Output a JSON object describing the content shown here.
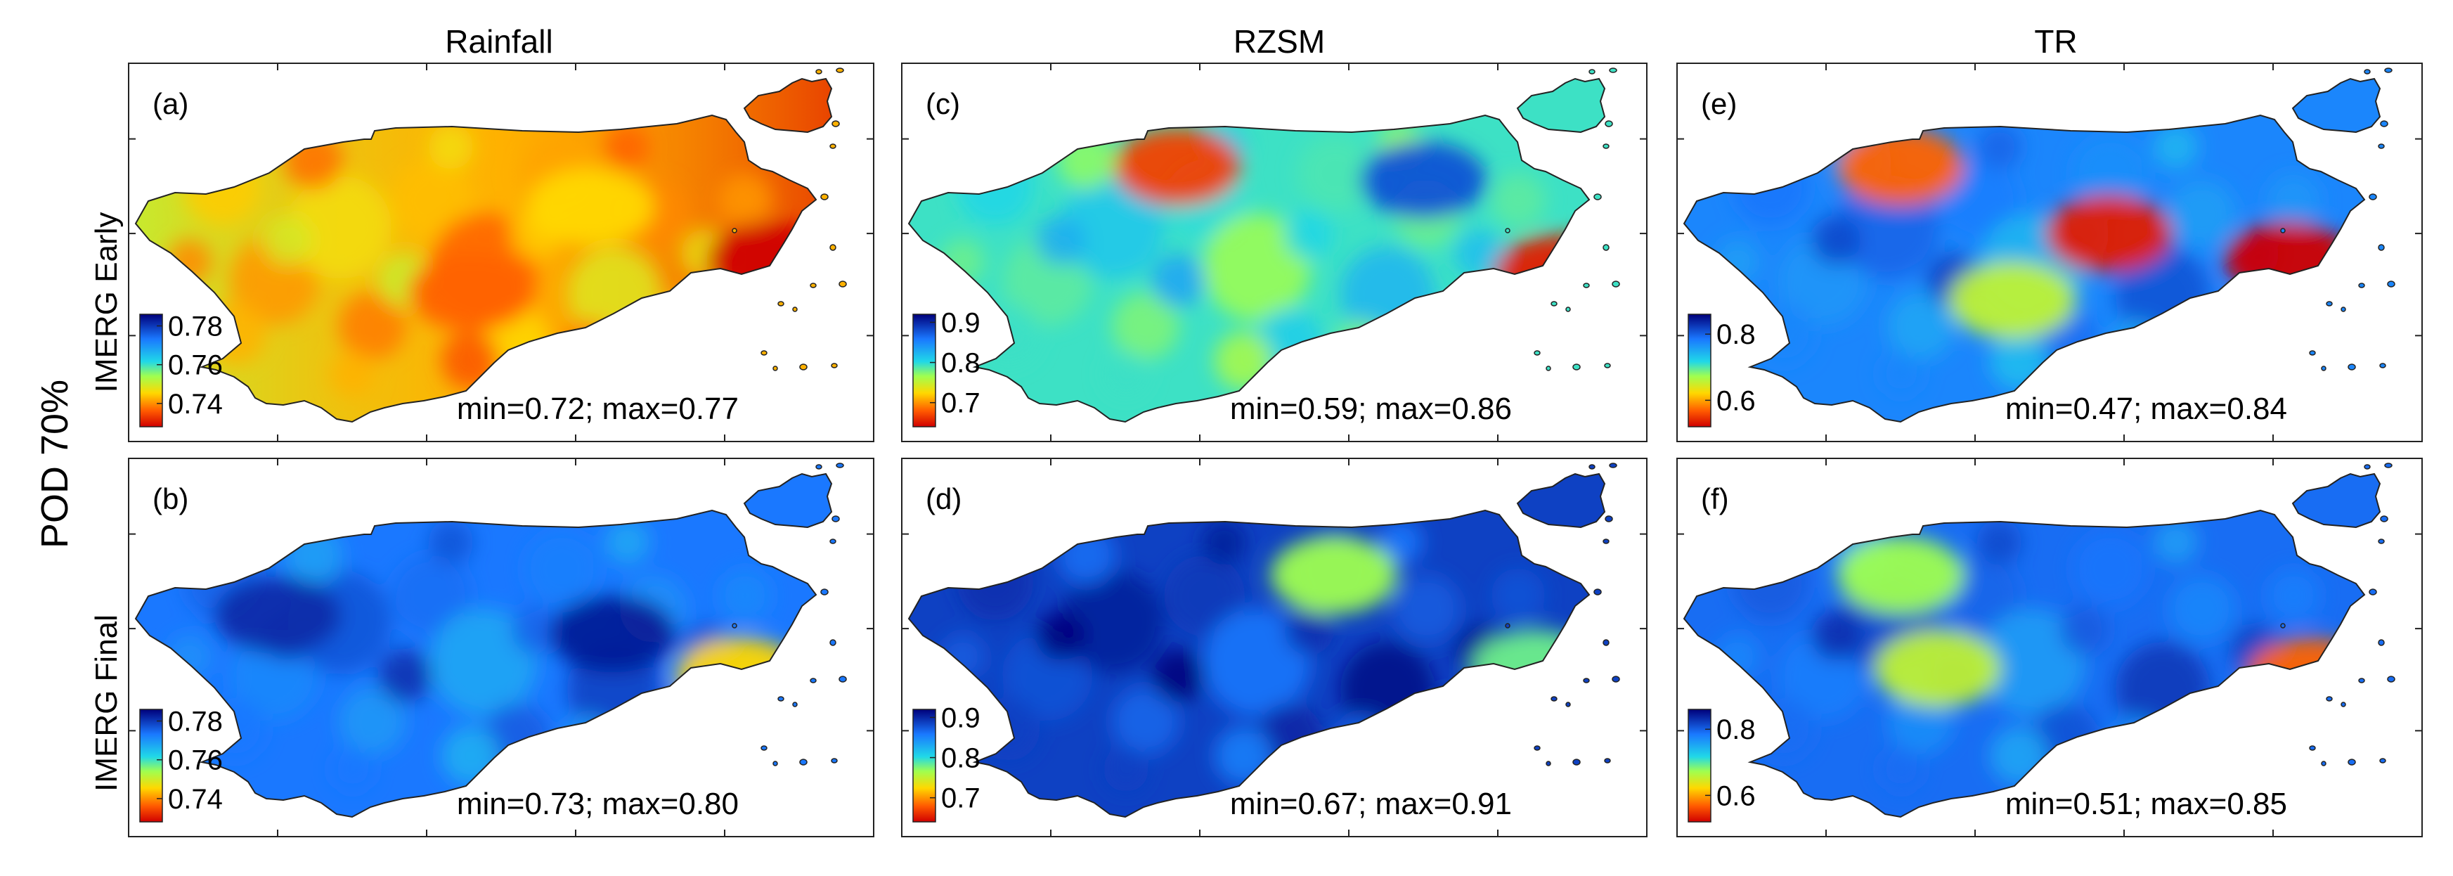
{
  "figure": {
    "row_group_label": "POD 70%",
    "column_titles": [
      "Rainfall",
      "RZSM",
      "TR"
    ],
    "row_labels": [
      "IMERG Early",
      "IMERG Final"
    ]
  },
  "chart_data": [
    {
      "type": "heatmap",
      "panel": "(a)",
      "column": "Rainfall",
      "row": "IMERG Early",
      "metric": "POD 70%",
      "colormap": "jet_reversed",
      "colorbar": {
        "ticks": [
          "0.78",
          "0.76",
          "0.74"
        ],
        "tick_values": [
          0.78,
          0.76,
          0.74
        ],
        "range": [
          0.728,
          0.786
        ]
      },
      "stats_label": "min=0.72; max=0.77",
      "min": 0.72,
      "max": 0.77,
      "level": 0.25,
      "gradient": "east",
      "hotspots": [
        [
          0.86,
          0.5,
          0.0
        ],
        [
          0.46,
          0.62,
          0.15
        ],
        [
          0.62,
          0.3,
          0.3
        ]
      ]
    },
    {
      "type": "heatmap",
      "panel": "(b)",
      "column": "Rainfall",
      "row": "IMERG Final",
      "metric": "POD 70%",
      "colormap": "jet_reversed",
      "colorbar": {
        "ticks": [
          "0.78",
          "0.76",
          "0.74"
        ],
        "tick_values": [
          0.78,
          0.76,
          0.74
        ],
        "range": [
          0.728,
          0.786
        ]
      },
      "stats_label": "min=0.73; max=0.80",
      "min": 0.73,
      "max": 0.8,
      "level": 0.78,
      "gradient": "none",
      "hotspots": [
        [
          0.82,
          0.58,
          0.3
        ],
        [
          0.65,
          0.42,
          0.95
        ],
        [
          0.2,
          0.35,
          0.92
        ]
      ]
    },
    {
      "type": "heatmap",
      "panel": "(c)",
      "column": "RZSM",
      "row": "IMERG Early",
      "metric": "POD 70%",
      "colormap": "jet_reversed",
      "colorbar": {
        "ticks": [
          "0.9",
          "0.8",
          "0.7"
        ],
        "tick_values": [
          0.9,
          0.8,
          0.7
        ],
        "range": [
          0.64,
          0.92
        ]
      },
      "stats_label": "min=0.59; max=0.86",
      "min": 0.59,
      "max": 0.86,
      "level": 0.55,
      "gradient": "none",
      "hotspots": [
        [
          0.88,
          0.55,
          0.05
        ],
        [
          0.37,
          0.15,
          0.1
        ],
        [
          0.7,
          0.2,
          0.85
        ]
      ]
    },
    {
      "type": "heatmap",
      "panel": "(d)",
      "column": "RZSM",
      "row": "IMERG Final",
      "metric": "POD 70%",
      "colormap": "jet_reversed",
      "colorbar": {
        "ticks": [
          "0.9",
          "0.8",
          "0.7"
        ],
        "tick_values": [
          0.9,
          0.8,
          0.7
        ],
        "range": [
          0.64,
          0.92
        ]
      },
      "stats_label": "min=0.67; max=0.91",
      "min": 0.67,
      "max": 0.91,
      "level": 0.88,
      "gradient": "none",
      "hotspots": [
        [
          0.58,
          0.2,
          0.45
        ],
        [
          0.85,
          0.55,
          0.5
        ]
      ]
    },
    {
      "type": "heatmap",
      "panel": "(e)",
      "column": "TR",
      "row": "IMERG Early",
      "metric": "POD 70%",
      "colormap": "jet_reversed",
      "colorbar": {
        "ticks": [
          "0.8",
          "0.6"
        ],
        "tick_values": [
          0.8,
          0.6
        ],
        "range": [
          0.52,
          0.86
        ]
      },
      "stats_label": "min=0.47; max=0.84",
      "min": 0.47,
      "max": 0.84,
      "level": 0.75,
      "gradient": "none",
      "hotspots": [
        [
          0.82,
          0.5,
          0.0
        ],
        [
          0.58,
          0.4,
          0.05
        ],
        [
          0.3,
          0.15,
          0.15
        ],
        [
          0.45,
          0.65,
          0.4
        ]
      ]
    },
    {
      "type": "heatmap",
      "panel": "(f)",
      "column": "TR",
      "row": "IMERG Final",
      "metric": "POD 70%",
      "colormap": "jet_reversed",
      "colorbar": {
        "ticks": [
          "0.8",
          "0.6"
        ],
        "tick_values": [
          0.8,
          0.6
        ],
        "range": [
          0.52,
          0.86
        ]
      },
      "stats_label": "min=0.51; max=0.85",
      "min": 0.51,
      "max": 0.85,
      "level": 0.8,
      "gradient": "none",
      "hotspots": [
        [
          0.85,
          0.58,
          0.15
        ],
        [
          0.35,
          0.55,
          0.4
        ],
        [
          0.3,
          0.2,
          0.45
        ]
      ]
    }
  ]
}
